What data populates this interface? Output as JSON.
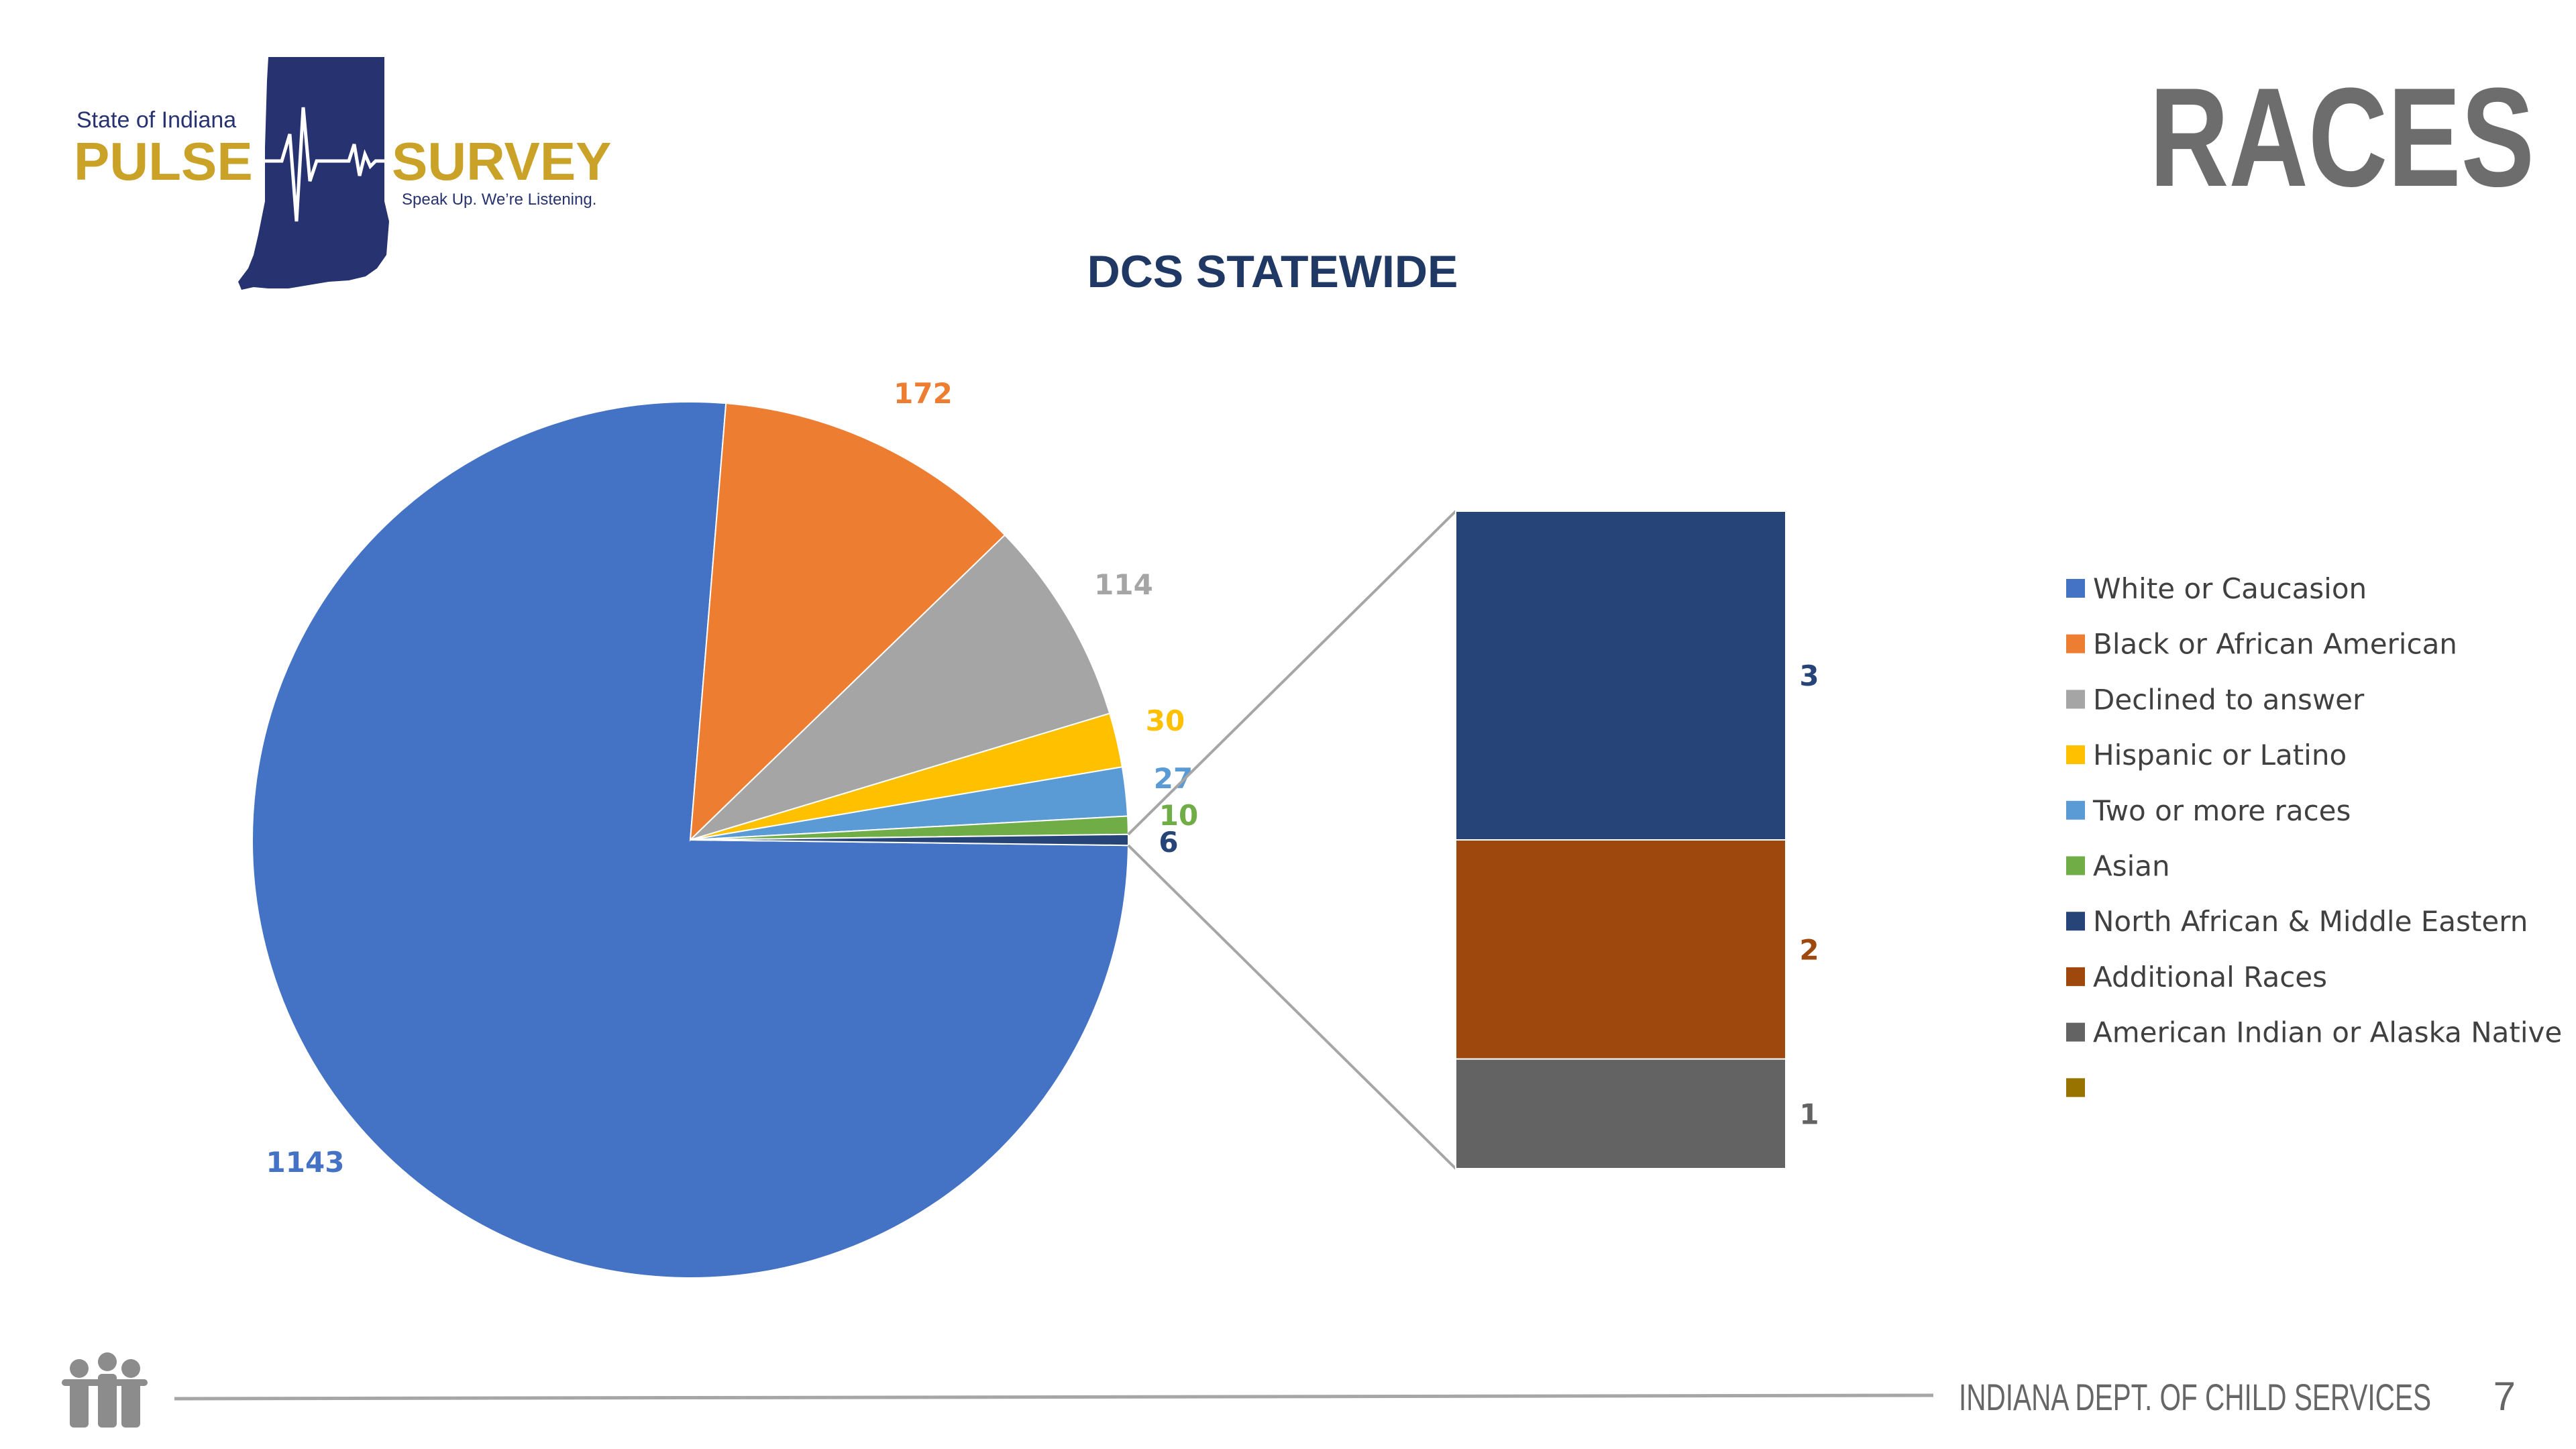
{
  "header": {
    "logo_state": "State of Indiana",
    "logo_pulse": "PULSE",
    "logo_survey": "SURVEY",
    "logo_tagline": "Speak Up. We’re Listening.",
    "title": "RACES"
  },
  "chart_data": {
    "type": "pie",
    "title": "DCS STATEWIDE",
    "pie": {
      "categories": [
        "White or Caucasion",
        "Black or African American",
        "Declined to answer",
        "Hispanic or Latino",
        "Two or more races",
        "Asian"
      ],
      "values": [
        1143,
        172,
        114,
        30,
        27,
        10
      ],
      "colors": [
        "#4472c4",
        "#ed7d31",
        "#a5a5a5",
        "#ffc000",
        "#5b9bd5",
        "#70ad47"
      ]
    },
    "other_value": 6,
    "other_color": "#264478",
    "bar": {
      "categories": [
        "North African & Middle Eastern",
        "Additional Races",
        "American Indian or Alaska Native",
        null
      ],
      "values": [
        3,
        2,
        1,
        null
      ],
      "colors": [
        "#264478",
        "#9e480e",
        "#636363",
        "#997300"
      ]
    }
  },
  "footer": {
    "organization": "INDIANA DEPT. OF CHILD SERVICES",
    "page": "7"
  }
}
